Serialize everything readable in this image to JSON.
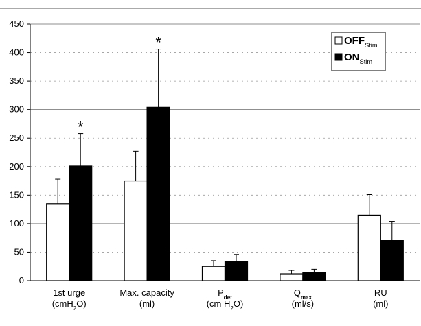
{
  "chart_data": {
    "type": "bar",
    "title": "",
    "xlabel": "",
    "ylabel": "",
    "ylim": [
      0,
      450
    ],
    "yticks": [
      0,
      50,
      100,
      150,
      200,
      250,
      300,
      350,
      400,
      450
    ],
    "categories": [
      {
        "line1": "1st urge",
        "line2": "(cmH",
        "line2_sub": "2",
        "line2_end": "O)"
      },
      {
        "line1": "Max. capacity",
        "line2": "(ml)"
      },
      {
        "line1": "P",
        "line1_sub": "det",
        "line2": "(cm H",
        "line2_sub": "2",
        "line2_end": "O)"
      },
      {
        "line1": "Q",
        "line1_sub": "max",
        "line2": "(ml/s)"
      },
      {
        "line1": "RU",
        "line2": "(ml)"
      }
    ],
    "series": [
      {
        "name": "OFF",
        "name_sub": "Stim",
        "fill": "#ffffff",
        "values": [
          135,
          175,
          25,
          12,
          115
        ],
        "errors": [
          43,
          52,
          10,
          6,
          36
        ]
      },
      {
        "name": "ON",
        "name_sub": "Stim",
        "fill": "#000000",
        "values": [
          201,
          304,
          34,
          14,
          71
        ],
        "errors": [
          57,
          102,
          12,
          6,
          33
        ]
      }
    ],
    "significance": [
      {
        "category": 0,
        "series": 1,
        "label": "*"
      },
      {
        "category": 1,
        "series": 1,
        "label": "*"
      }
    ],
    "solid_gridlines": [
      0,
      100,
      300,
      450
    ],
    "dashed_gridlines": [
      50,
      150,
      200,
      250,
      350,
      400
    ],
    "legend_position": "top-right",
    "grid": true
  }
}
